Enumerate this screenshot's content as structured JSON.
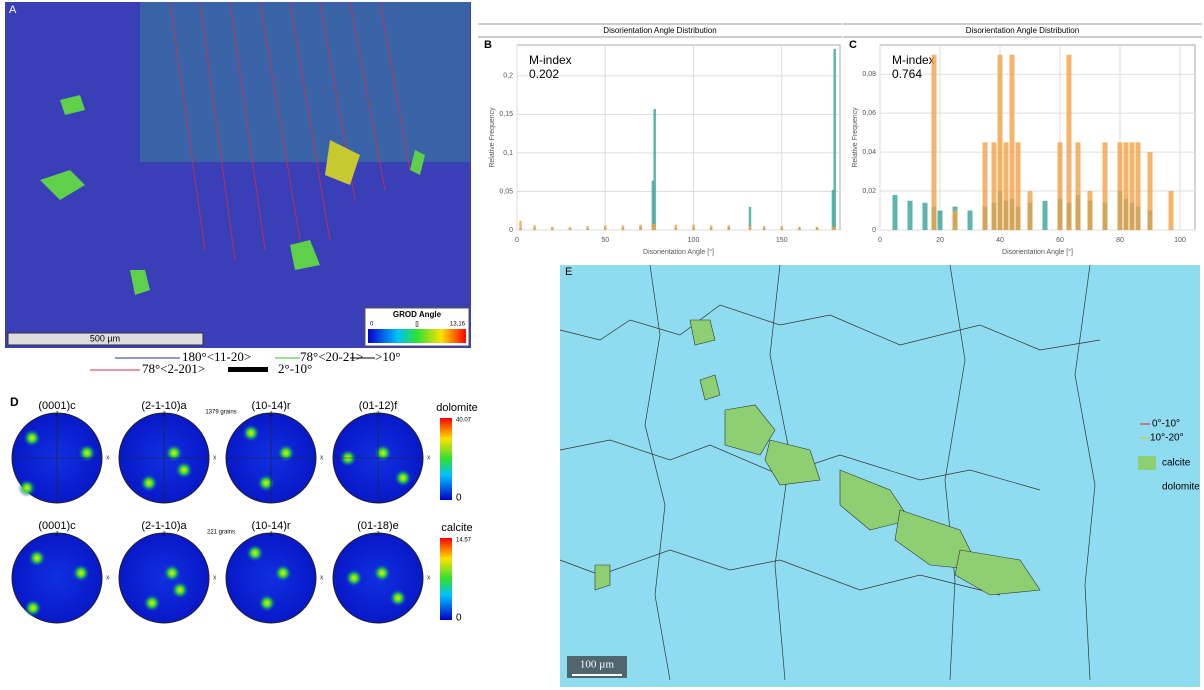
{
  "panels": {
    "a": {
      "label": "A",
      "scale_bar": "500 µm",
      "colorbar_title": "GROD Angle",
      "colorbar_min": "0",
      "colorbar_mid": "[]",
      "colorbar_max": "13,16",
      "legend": [
        "180°<11-20>",
        "78°<20-21>",
        ">10°",
        "78°<2-201>",
        "2°-10°"
      ]
    },
    "b": {
      "label": "B"
    },
    "c": {
      "label": "C"
    },
    "d": {
      "label": "D",
      "axis_z": "Z",
      "axis_x": "X",
      "rows": [
        {
          "titles": [
            "(0001)c",
            "(2-1-10)a",
            "(10-14)r",
            "(01-12)f"
          ],
          "grains": "1379 grains",
          "phase": "dolomite",
          "max": "40.07",
          "min": "0"
        },
        {
          "titles": [
            "(0001)c",
            "(2-1-10)a",
            "(10-14)r",
            "(01-18)e"
          ],
          "grains": "221 grains",
          "phase": "calcite",
          "max": "14.57",
          "min": "0"
        }
      ]
    },
    "e": {
      "label": "E",
      "scale_bar": "100 µm",
      "legend": [
        "0°-10°",
        "10°-20°",
        "calcite",
        "dolomite"
      ]
    }
  },
  "chart_data": [
    {
      "type": "bar",
      "title": "Disorientation Angle Distribution",
      "ylabel": "Relative Frequency",
      "xlabel": "Disorientation Angle [°]",
      "annotations": [
        "M-index",
        "0.202"
      ],
      "x": [
        2,
        10,
        20,
        30,
        40,
        50,
        60,
        70,
        77,
        78,
        90,
        100,
        110,
        120,
        132,
        140,
        150,
        160,
        170,
        179,
        180
      ],
      "series": [
        {
          "color": "#35a39a",
          "values": [
            0.002,
            0.002,
            0.002,
            0.002,
            0.002,
            0.003,
            0.003,
            0.004,
            0.064,
            0.157,
            0.003,
            0.003,
            0.003,
            0.004,
            0.03,
            0.003,
            0.003,
            0.003,
            0.003,
            0.052,
            0.235
          ]
        },
        {
          "color": "#f3a144",
          "values": [
            0.012,
            0.006,
            0.004,
            0.004,
            0.005,
            0.006,
            0.006,
            0.007,
            0.008,
            0.008,
            0.007,
            0.007,
            0.006,
            0.006,
            0.006,
            0.005,
            0.005,
            0.004,
            0.004,
            0.004,
            0.004
          ]
        }
      ],
      "xlim": [
        0,
        183
      ],
      "ylim": [
        0,
        0.24
      ],
      "xticks": [
        0,
        50,
        100,
        150
      ],
      "yticks": [
        0,
        {
          "value": 0.05,
          "label": "0,05"
        },
        {
          "value": 0.1,
          "label": "0,1"
        },
        {
          "value": 0.15,
          "label": "0,15"
        },
        {
          "value": 0.2,
          "label": "0,2"
        }
      ],
      "grid": true
    },
    {
      "type": "bar",
      "title": "Disorientation Angle Distribution",
      "ylabel": "Relative Frequency",
      "xlabel": "Disorientation Angle [°]",
      "annotations": [
        "M-index",
        "0.764"
      ],
      "x": [
        5,
        10,
        15,
        18,
        20,
        25,
        30,
        35,
        38,
        40,
        42,
        44,
        46,
        50,
        55,
        60,
        63,
        66,
        70,
        75,
        80,
        82,
        84,
        86,
        90,
        97
      ],
      "series": [
        {
          "color": "#35a39a",
          "values": [
            0.018,
            0.015,
            0.014,
            0.012,
            0.01,
            0.012,
            0.01,
            0.012,
            0.014,
            0.02,
            0.015,
            0.016,
            0.012,
            0.014,
            0.015,
            0.016,
            0.014,
            0.018,
            0.015,
            0.014,
            0.02,
            0.016,
            0.014,
            0.012,
            0.01,
            0
          ]
        },
        {
          "color": "#f3a144",
          "values": [
            0,
            0,
            0,
            0.09,
            0,
            0.01,
            0,
            0.045,
            0.045,
            0.09,
            0.045,
            0.09,
            0.045,
            0.02,
            0,
            0.045,
            0.09,
            0.045,
            0.02,
            0.045,
            0.045,
            0.045,
            0.045,
            0.045,
            0.04,
            0.02
          ]
        }
      ],
      "xlim": [
        0,
        105
      ],
      "ylim": [
        0,
        0.095
      ],
      "xticks": [
        0,
        20,
        40,
        60,
        80,
        100
      ],
      "yticks": [
        0,
        {
          "value": 0.02,
          "label": "0,02"
        },
        {
          "value": 0.04,
          "label": "0,04"
        },
        {
          "value": 0.06,
          "label": "0,06"
        },
        {
          "value": 0.08,
          "label": "0,08"
        }
      ],
      "grid": true
    }
  ]
}
